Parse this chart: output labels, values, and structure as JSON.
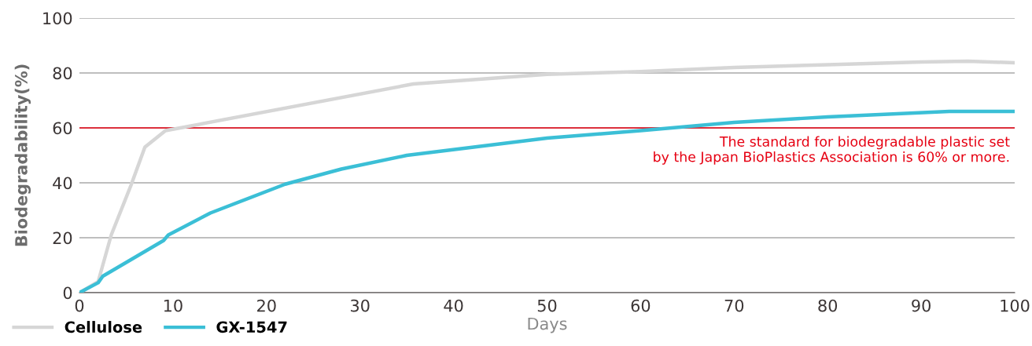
{
  "chart_data": {
    "type": "line",
    "xlabel": "Days",
    "ylabel": "Biodegradability(%)",
    "xlim": [
      0,
      100
    ],
    "xticks": [
      0,
      10,
      20,
      30,
      40,
      50,
      60,
      70,
      80,
      90,
      100
    ],
    "ylim": [
      0,
      100
    ],
    "yticks": [
      0,
      20,
      40,
      60,
      80,
      100
    ],
    "grid": "y",
    "legend": "bottom left",
    "line_style": "solid",
    "marker": "none",
    "series": [
      {
        "name": "Cellulose",
        "color": "#d6d6d6",
        "x": [
          0,
          2,
          3.4,
          5.5,
          7,
          9.2,
          35.7,
          50,
          60,
          70,
          80,
          90,
          95,
          100
        ],
        "values": [
          0,
          4,
          21,
          39,
          53,
          59,
          76,
          79.5,
          80.5,
          82,
          83,
          84,
          84.3,
          83.7
        ]
      },
      {
        "name": "GX-1547",
        "color": "#3bbfd6",
        "x": [
          0,
          2,
          2.5,
          7,
          9,
          9.5,
          14,
          22,
          28,
          35,
          50,
          60,
          70,
          80,
          93,
          100
        ],
        "values": [
          0,
          3.6,
          6,
          15,
          19,
          21,
          29,
          39.5,
          45,
          50,
          56.3,
          59,
          62,
          64,
          66,
          66
        ]
      }
    ],
    "ref_lines": [
      {
        "axis": "y",
        "value": 60,
        "color": "#e60012",
        "label": "The standard for biodegradable plastic set\nby the Japan BioPlastics Association is 60% or more."
      }
    ]
  }
}
